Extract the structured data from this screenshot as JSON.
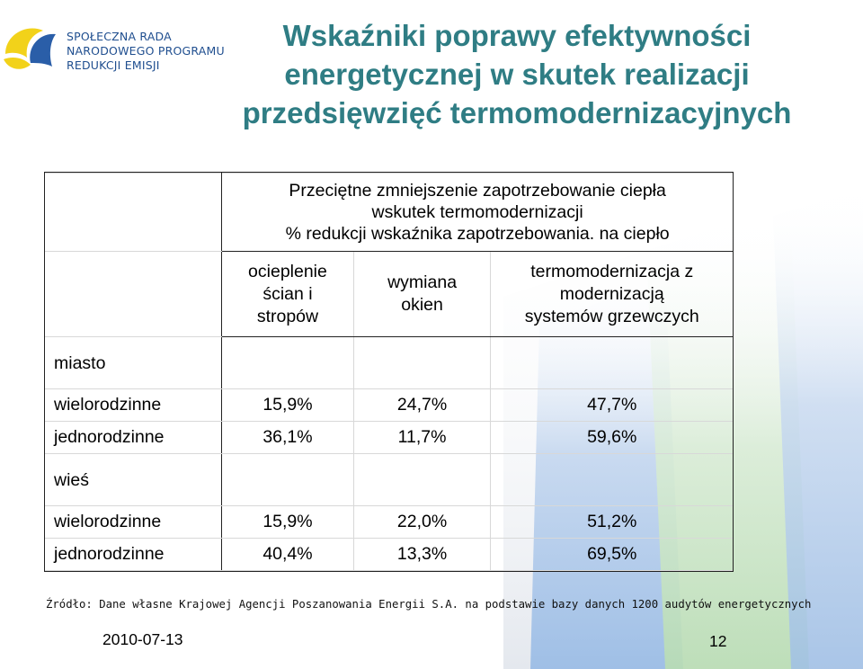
{
  "logo": {
    "lines": [
      "SPOŁECZNA RADA",
      "NARODOWEGO PROGRAMU",
      "REDUKCJI EMISJI"
    ]
  },
  "title": {
    "line1": "Wskaźniki poprawy efektywności",
    "line2": "energetycznej w skutek realizacji",
    "line3": "przedsięwzięć termomodernizacyjnych"
  },
  "table": {
    "header": {
      "line1": "Przeciętne zmniejszenie zapotrzebowanie ciepła",
      "line2": "wskutek termomodernizacji",
      "line3": "% redukcji wskaźnika zapotrzebowania. na ciepło"
    },
    "columns": {
      "col1": [
        "ocieplenie",
        "ścian i",
        "stropów"
      ],
      "col2": [
        "wymiana",
        "okien"
      ],
      "col3": [
        "termomodernizacja z",
        "modernizacją",
        "systemów grzewczych"
      ]
    },
    "sections": [
      {
        "label": "miasto",
        "rows": [
          {
            "label": "wielorodzinne",
            "v1": "15,9%",
            "v2": "24,7%",
            "v3": "47,7%"
          },
          {
            "label": "jednorodzinne",
            "v1": "36,1%",
            "v2": "11,7%",
            "v3": "59,6%"
          }
        ]
      },
      {
        "label": "wieś",
        "rows": [
          {
            "label": "wielorodzinne",
            "v1": "15,9%",
            "v2": "22,0%",
            "v3": "51,2%"
          },
          {
            "label": "jednorodzinne",
            "v1": "40,4%",
            "v2": "13,3%",
            "v3": "69,5%"
          }
        ]
      }
    ]
  },
  "source": "Źródło: Dane własne Krajowej Agencji Poszanowania Energii S.A. na podstawie bazy danych 1200 audytów energetycznych",
  "date": "2010-07-13",
  "page_number": "12",
  "colors": {
    "title": "#2f7d84",
    "header_text": "#1f3f6e",
    "logo_yellow": "#f2d21a",
    "logo_blue": "#2a5ea8",
    "logo_text": "#1f4e8f"
  }
}
